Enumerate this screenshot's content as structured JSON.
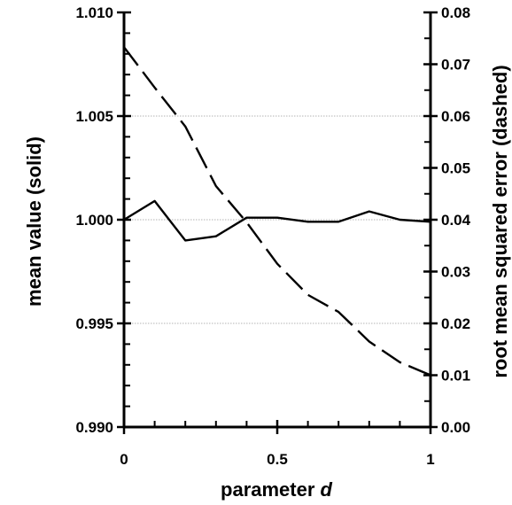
{
  "chart_data": {
    "type": "line",
    "xlabel": {
      "text": "parameter ",
      "italic_var": "d"
    },
    "ylabel_left": "mean value (solid)",
    "ylabel_right": "root mean squared error (dashed)",
    "xlim": [
      0,
      1
    ],
    "ylim_left": [
      0.99,
      1.01
    ],
    "ylim_right": [
      0.0,
      0.08
    ],
    "x_ticks": [
      0,
      0.5,
      1
    ],
    "x_tick_labels": [
      "0",
      "0.5",
      "1"
    ],
    "y_left_ticks": [
      0.99,
      0.995,
      1.0,
      1.005,
      1.01
    ],
    "y_left_tick_labels": [
      "0.990",
      "0.995",
      "1.000",
      "1.005",
      "1.010"
    ],
    "y_right_ticks": [
      0.0,
      0.01,
      0.02,
      0.03,
      0.04,
      0.05,
      0.06,
      0.07,
      0.08
    ],
    "y_right_tick_labels": [
      "0.00",
      "0.01",
      "0.02",
      "0.03",
      "0.04",
      "0.05",
      "0.06",
      "0.07",
      "0.08"
    ],
    "gridlines": "horizontal, dotted, at left-axis major ticks",
    "series": [
      {
        "style": "solid",
        "axis": "left",
        "x": [
          0,
          0.1,
          0.2,
          0.3,
          0.4,
          0.5,
          0.6,
          0.7,
          0.8,
          0.9,
          1.0
        ],
        "values": [
          1.0,
          1.0009,
          0.999,
          0.9992,
          1.0001,
          1.0001,
          0.9999,
          0.9999,
          1.0004,
          1.0,
          0.9999
        ]
      },
      {
        "style": "dashed",
        "axis": "right",
        "x": [
          0,
          0.1,
          0.2,
          0.3,
          0.4,
          0.5,
          0.6,
          0.7,
          0.8,
          0.9,
          1.0
        ],
        "values": [
          0.0733,
          0.0655,
          0.058,
          0.0465,
          0.0395,
          0.0315,
          0.0255,
          0.0222,
          0.0165,
          0.0125,
          0.01
        ]
      }
    ]
  }
}
